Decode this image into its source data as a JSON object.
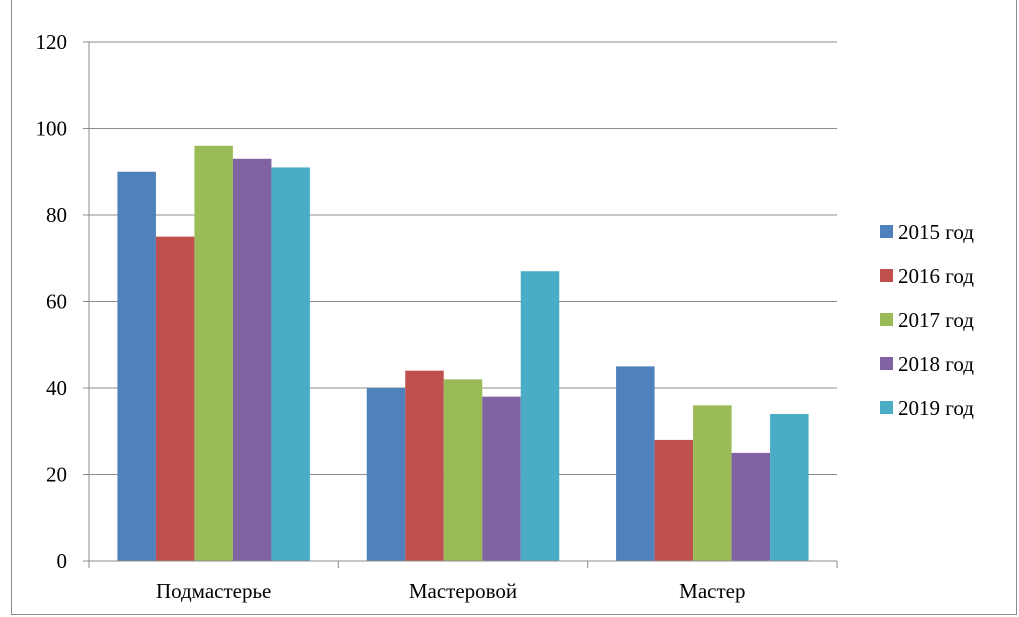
{
  "chart_data": {
    "type": "bar",
    "categories": [
      "Подмастерье",
      "Мастеровой",
      "Мастер"
    ],
    "series": [
      {
        "name": "2015 год",
        "color": "#4F81BD",
        "values": [
          90,
          40,
          45
        ]
      },
      {
        "name": "2016 год",
        "color": "#C0504D",
        "values": [
          75,
          44,
          28
        ]
      },
      {
        "name": "2017 год",
        "color": "#9BBB59",
        "values": [
          96,
          42,
          36
        ]
      },
      {
        "name": "2018 год",
        "color": "#8064A2",
        "values": [
          93,
          38,
          25
        ]
      },
      {
        "name": "2019 год",
        "color": "#4BACC6",
        "values": [
          91,
          67,
          34
        ]
      }
    ],
    "yticks": [
      "0",
      "20",
      "40",
      "60",
      "80",
      "100",
      "120"
    ],
    "ylim": [
      0,
      120
    ],
    "grid": true,
    "legend_position": "right"
  }
}
